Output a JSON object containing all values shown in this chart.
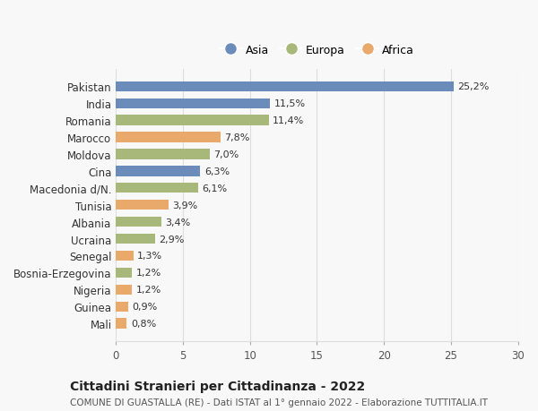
{
  "categories": [
    "Pakistan",
    "India",
    "Romania",
    "Marocco",
    "Moldova",
    "Cina",
    "Macedonia d/N.",
    "Tunisia",
    "Albania",
    "Ucraina",
    "Senegal",
    "Bosnia-Erzegovina",
    "Nigeria",
    "Guinea",
    "Mali"
  ],
  "values": [
    25.2,
    11.5,
    11.4,
    7.8,
    7.0,
    6.3,
    6.1,
    3.9,
    3.4,
    2.9,
    1.3,
    1.2,
    1.2,
    0.9,
    0.8
  ],
  "labels": [
    "25,2%",
    "11,5%",
    "11,4%",
    "7,8%",
    "7,0%",
    "6,3%",
    "6,1%",
    "3,9%",
    "3,4%",
    "2,9%",
    "1,3%",
    "1,2%",
    "1,2%",
    "0,9%",
    "0,8%"
  ],
  "continents": [
    "Asia",
    "Asia",
    "Europa",
    "Africa",
    "Europa",
    "Asia",
    "Europa",
    "Africa",
    "Europa",
    "Europa",
    "Africa",
    "Europa",
    "Africa",
    "Africa",
    "Africa"
  ],
  "colors": {
    "Asia": "#6b8cba",
    "Europa": "#a8b87a",
    "Africa": "#e8a96a"
  },
  "legend_labels": [
    "Asia",
    "Europa",
    "Africa"
  ],
  "xlim": [
    0,
    30
  ],
  "xticks": [
    0,
    5,
    10,
    15,
    20,
    25,
    30
  ],
  "title": "Cittadini Stranieri per Cittadinanza - 2022",
  "subtitle": "COMUNE DI GUASTALLA (RE) - Dati ISTAT al 1° gennaio 2022 - Elaborazione TUTTITALIA.IT",
  "background_color": "#f8f8f8",
  "grid_color": "#dddddd"
}
